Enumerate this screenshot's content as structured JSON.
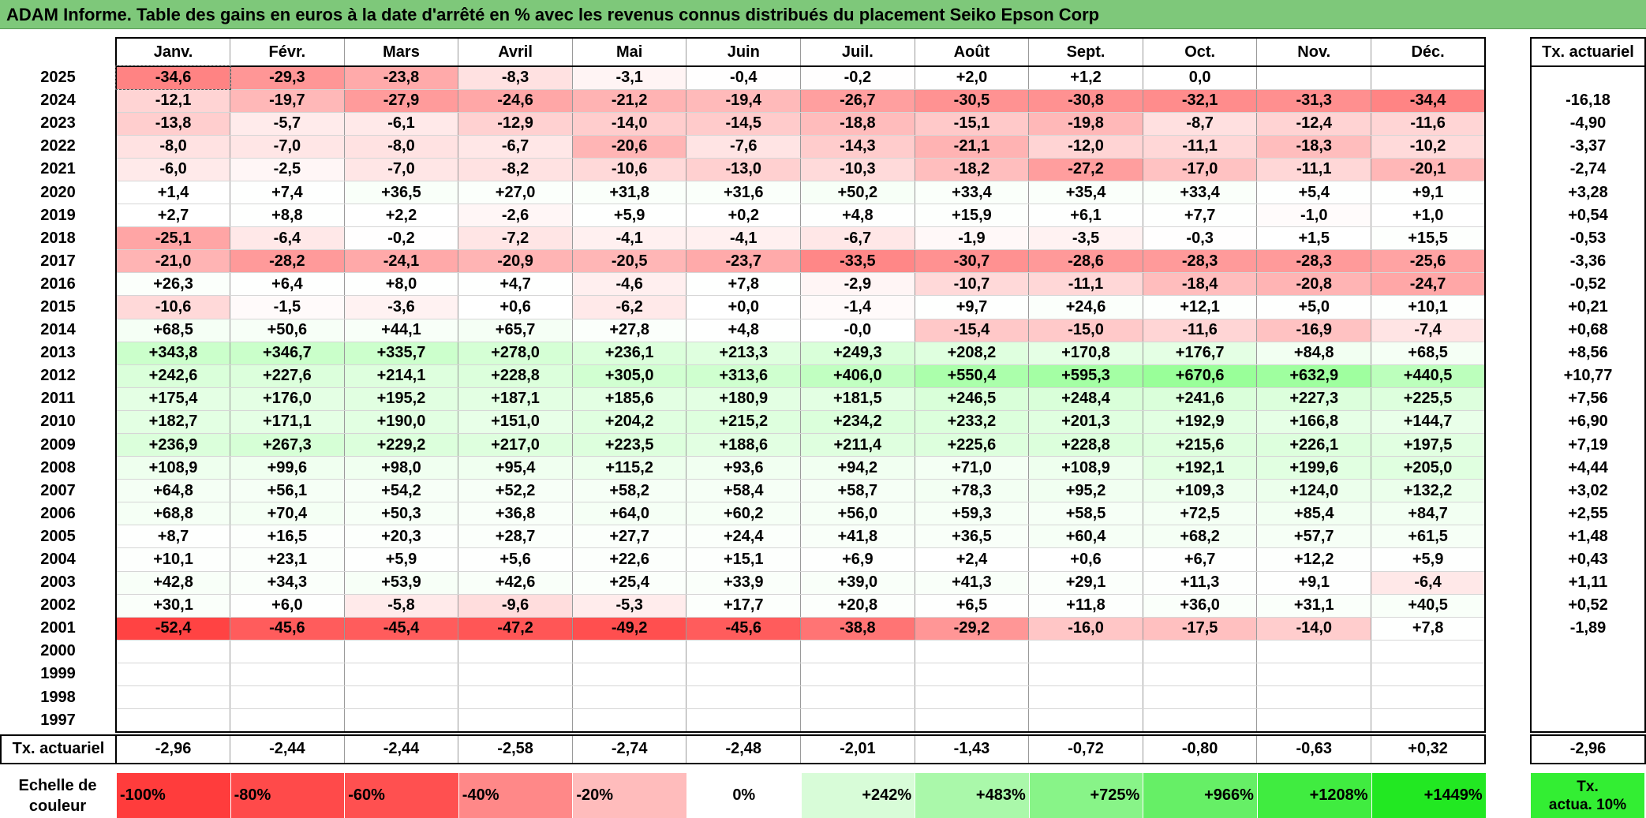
{
  "title": "ADAM Informe. Table des gains en euros à la date d'arrêté en % avec les revenus connus distribués du placement Seiko Epson Corp",
  "months": [
    "Janv.",
    "Févr.",
    "Mars",
    "Avril",
    "Mai",
    "Juin",
    "Juil.",
    "Août",
    "Sept.",
    "Oct.",
    "Nov.",
    "Déc."
  ],
  "actuarial_header": "Tx. actuariel",
  "rows": [
    {
      "year": "2025",
      "values": [
        "-34,6",
        "-29,3",
        "-23,8",
        "-8,3",
        "-3,1",
        "-0,4",
        "-0,2",
        "+2,0",
        "+1,2",
        "0,0",
        "",
        ""
      ],
      "actuarial": ""
    },
    {
      "year": "2024",
      "values": [
        "-12,1",
        "-19,7",
        "-27,9",
        "-24,6",
        "-21,2",
        "-19,4",
        "-26,7",
        "-30,5",
        "-30,8",
        "-32,1",
        "-31,3",
        "-34,4"
      ],
      "actuarial": "-16,18"
    },
    {
      "year": "2023",
      "values": [
        "-13,8",
        "-5,7",
        "-6,1",
        "-12,9",
        "-14,0",
        "-14,5",
        "-18,8",
        "-15,1",
        "-19,8",
        "-8,7",
        "-12,4",
        "-11,6"
      ],
      "actuarial": "-4,90"
    },
    {
      "year": "2022",
      "values": [
        "-8,0",
        "-7,0",
        "-8,0",
        "-6,7",
        "-20,6",
        "-7,6",
        "-14,3",
        "-21,1",
        "-12,0",
        "-11,1",
        "-18,3",
        "-10,2"
      ],
      "actuarial": "-3,37"
    },
    {
      "year": "2021",
      "values": [
        "-6,0",
        "-2,5",
        "-7,0",
        "-8,2",
        "-10,6",
        "-13,0",
        "-10,3",
        "-18,2",
        "-27,2",
        "-17,0",
        "-11,1",
        "-20,1"
      ],
      "actuarial": "-2,74"
    },
    {
      "year": "2020",
      "values": [
        "+1,4",
        "+7,4",
        "+36,5",
        "+27,0",
        "+31,8",
        "+31,6",
        "+50,2",
        "+33,4",
        "+35,4",
        "+33,4",
        "+5,4",
        "+9,1"
      ],
      "actuarial": "+3,28"
    },
    {
      "year": "2019",
      "values": [
        "+2,7",
        "+8,8",
        "+2,2",
        "-2,6",
        "+5,9",
        "+0,2",
        "+4,8",
        "+15,9",
        "+6,1",
        "+7,7",
        "-1,0",
        "+1,0"
      ],
      "actuarial": "+0,54"
    },
    {
      "year": "2018",
      "values": [
        "-25,1",
        "-6,4",
        "-0,2",
        "-7,2",
        "-4,1",
        "-4,1",
        "-6,7",
        "-1,9",
        "-3,5",
        "-0,3",
        "+1,5",
        "+15,5"
      ],
      "actuarial": "-0,53"
    },
    {
      "year": "2017",
      "values": [
        "-21,0",
        "-28,2",
        "-24,1",
        "-20,9",
        "-20,5",
        "-23,7",
        "-33,5",
        "-30,7",
        "-28,6",
        "-28,3",
        "-28,3",
        "-25,6"
      ],
      "actuarial": "-3,36"
    },
    {
      "year": "2016",
      "values": [
        "+26,3",
        "+6,4",
        "+8,0",
        "+4,7",
        "-4,6",
        "+7,8",
        "-2,9",
        "-10,7",
        "-11,1",
        "-18,4",
        "-20,8",
        "-24,7"
      ],
      "actuarial": "-0,52"
    },
    {
      "year": "2015",
      "values": [
        "-10,6",
        "-1,5",
        "-3,6",
        "+0,6",
        "-6,2",
        "+0,0",
        "-1,4",
        "+9,7",
        "+24,6",
        "+12,1",
        "+5,0",
        "+10,1"
      ],
      "actuarial": "+0,21"
    },
    {
      "year": "2014",
      "values": [
        "+68,5",
        "+50,6",
        "+44,1",
        "+65,7",
        "+27,8",
        "+4,8",
        "-0,0",
        "-15,4",
        "-15,0",
        "-11,6",
        "-16,9",
        "-7,4"
      ],
      "actuarial": "+0,68"
    },
    {
      "year": "2013",
      "values": [
        "+343,8",
        "+346,7",
        "+335,7",
        "+278,0",
        "+236,1",
        "+213,3",
        "+249,3",
        "+208,2",
        "+170,8",
        "+176,7",
        "+84,8",
        "+68,5"
      ],
      "actuarial": "+8,56"
    },
    {
      "year": "2012",
      "values": [
        "+242,6",
        "+227,6",
        "+214,1",
        "+228,8",
        "+305,0",
        "+313,6",
        "+406,0",
        "+550,4",
        "+595,3",
        "+670,6",
        "+632,9",
        "+440,5"
      ],
      "actuarial": "+10,77"
    },
    {
      "year": "2011",
      "values": [
        "+175,4",
        "+176,0",
        "+195,2",
        "+187,1",
        "+185,6",
        "+180,9",
        "+181,5",
        "+246,5",
        "+248,4",
        "+241,6",
        "+227,3",
        "+225,5"
      ],
      "actuarial": "+7,56"
    },
    {
      "year": "2010",
      "values": [
        "+182,7",
        "+171,1",
        "+190,0",
        "+151,0",
        "+204,2",
        "+215,2",
        "+234,2",
        "+233,2",
        "+201,3",
        "+192,9",
        "+166,8",
        "+144,7"
      ],
      "actuarial": "+6,90"
    },
    {
      "year": "2009",
      "values": [
        "+236,9",
        "+267,3",
        "+229,2",
        "+217,0",
        "+223,5",
        "+188,6",
        "+211,4",
        "+225,6",
        "+228,8",
        "+215,6",
        "+226,1",
        "+197,5"
      ],
      "actuarial": "+7,19"
    },
    {
      "year": "2008",
      "values": [
        "+108,9",
        "+99,6",
        "+98,0",
        "+95,4",
        "+115,2",
        "+93,6",
        "+94,2",
        "+71,0",
        "+108,9",
        "+192,1",
        "+199,6",
        "+205,0"
      ],
      "actuarial": "+4,44"
    },
    {
      "year": "2007",
      "values": [
        "+64,8",
        "+56,1",
        "+54,2",
        "+52,2",
        "+58,2",
        "+58,4",
        "+58,7",
        "+78,3",
        "+95,2",
        "+109,3",
        "+124,0",
        "+132,2"
      ],
      "actuarial": "+3,02"
    },
    {
      "year": "2006",
      "values": [
        "+68,8",
        "+70,4",
        "+50,3",
        "+36,8",
        "+64,0",
        "+60,2",
        "+56,0",
        "+59,3",
        "+58,5",
        "+72,5",
        "+85,4",
        "+84,7"
      ],
      "actuarial": "+2,55"
    },
    {
      "year": "2005",
      "values": [
        "+8,7",
        "+16,5",
        "+20,3",
        "+28,7",
        "+27,7",
        "+24,4",
        "+41,8",
        "+36,5",
        "+60,4",
        "+68,2",
        "+57,7",
        "+61,5"
      ],
      "actuarial": "+1,48"
    },
    {
      "year": "2004",
      "values": [
        "+10,1",
        "+23,1",
        "+5,9",
        "+5,6",
        "+22,6",
        "+15,1",
        "+6,9",
        "+2,4",
        "+0,6",
        "+6,7",
        "+12,2",
        "+5,9"
      ],
      "actuarial": "+0,43"
    },
    {
      "year": "2003",
      "values": [
        "+42,8",
        "+34,3",
        "+53,9",
        "+42,6",
        "+25,4",
        "+33,9",
        "+39,0",
        "+41,3",
        "+29,1",
        "+11,3",
        "+9,1",
        "-6,4"
      ],
      "actuarial": "+1,11"
    },
    {
      "year": "2002",
      "values": [
        "+30,1",
        "+6,0",
        "-5,8",
        "-9,6",
        "-5,3",
        "+17,7",
        "+20,8",
        "+6,5",
        "+11,8",
        "+36,0",
        "+31,1",
        "+40,5"
      ],
      "actuarial": "+0,52"
    },
    {
      "year": "2001",
      "values": [
        "-52,4",
        "-45,6",
        "-45,4",
        "-47,2",
        "-49,2",
        "-45,6",
        "-38,8",
        "-29,2",
        "-16,0",
        "-17,5",
        "-14,0",
        "+7,8"
      ],
      "actuarial": "-1,89"
    },
    {
      "year": "2000",
      "values": [
        "",
        "",
        "",
        "",
        "",
        "",
        "",
        "",
        "",
        "",
        "",
        ""
      ],
      "actuarial": ""
    },
    {
      "year": "1999",
      "values": [
        "",
        "",
        "",
        "",
        "",
        "",
        "",
        "",
        "",
        "",
        "",
        ""
      ],
      "actuarial": ""
    },
    {
      "year": "1998",
      "values": [
        "",
        "",
        "",
        "",
        "",
        "",
        "",
        "",
        "",
        "",
        "",
        ""
      ],
      "actuarial": ""
    },
    {
      "year": "1997",
      "values": [
        "",
        "",
        "",
        "",
        "",
        "",
        "",
        "",
        "",
        "",
        "",
        ""
      ],
      "actuarial": ""
    }
  ],
  "footer": {
    "label": "Tx. actuariel",
    "values": [
      "-2,96",
      "-2,44",
      "-2,44",
      "-2,58",
      "-2,74",
      "-2,48",
      "-2,01",
      "-1,43",
      "-0,72",
      "-0,80",
      "-0,63",
      "+0,32"
    ],
    "actuarial": "-2,96"
  },
  "scale": {
    "label_line1": "Echelle de",
    "label_line2": "couleur",
    "steps": [
      {
        "label": "-100%",
        "color": "#ff3c3c",
        "kind": "neg"
      },
      {
        "label": "-80%",
        "color": "#ff4a4a",
        "kind": "neg"
      },
      {
        "label": "-60%",
        "color": "#ff5050",
        "kind": "neg"
      },
      {
        "label": "-40%",
        "color": "#ff8888",
        "kind": "neg"
      },
      {
        "label": "-20%",
        "color": "#ffbcbc",
        "kind": "neg"
      },
      {
        "label": "0%",
        "color": "#ffffff",
        "kind": "zero"
      },
      {
        "label": "+242%",
        "color": "#d8fcd8",
        "kind": "pos"
      },
      {
        "label": "+483%",
        "color": "#aaf8aa",
        "kind": "pos"
      },
      {
        "label": "+725%",
        "color": "#88f488",
        "kind": "pos"
      },
      {
        "label": "+966%",
        "color": "#66ef66",
        "kind": "pos"
      },
      {
        "label": "+1208%",
        "color": "#40ec40",
        "kind": "pos"
      },
      {
        "label": "+1449%",
        "color": "#22e822",
        "kind": "pos"
      }
    ],
    "ref_line1": "Tx.",
    "ref_line2": "actua. 10%",
    "ref_color": "#33ee33"
  }
}
